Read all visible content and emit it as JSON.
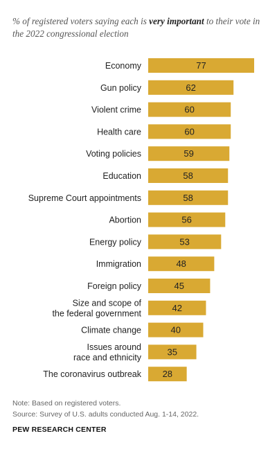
{
  "header": {
    "subtitle_pre": "% of registered voters saying each is ",
    "subtitle_bold": "very important",
    "subtitle_post": " to their vote in the 2022 congressional election"
  },
  "chart_data": {
    "type": "bar",
    "orientation": "horizontal",
    "categories": [
      "Economy",
      "Gun policy",
      "Violent crime",
      "Health care",
      "Voting policies",
      "Education",
      "Supreme Court appointments",
      "Abortion",
      "Energy policy",
      "Immigration",
      "Foreign policy",
      "Size and scope of\nthe federal government",
      "Climate change",
      "Issues around\nrace and ethnicity",
      "The coronavirus outbreak"
    ],
    "values": [
      77,
      62,
      60,
      60,
      59,
      58,
      58,
      56,
      53,
      48,
      45,
      42,
      40,
      35,
      28
    ],
    "bar_color": "#d9a933",
    "xlim": [
      0,
      77
    ],
    "grid": false,
    "legend": "none"
  },
  "footer": {
    "note": "Note: Based on registered voters.",
    "source": "Source: Survey of U.S. adults conducted Aug. 1-14, 2022.",
    "brand": "PEW RESEARCH CENTER"
  }
}
